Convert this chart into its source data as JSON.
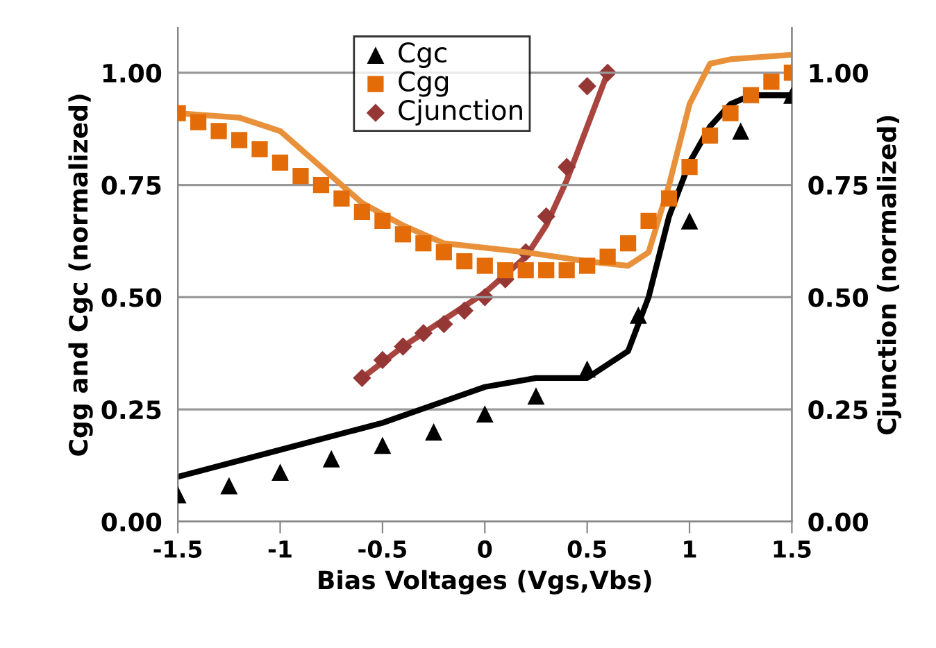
{
  "chart_data": {
    "type": "scatter",
    "xlabel": "Bias Voltages (Vgs,Vbs)",
    "ylabel": "Cgg and Cgc (normalized)",
    "y2label": "Cjunction (normalized)",
    "xlim": [
      -1.5,
      1.5
    ],
    "xticks": [
      {
        "value": -1.5,
        "label": "-1.5"
      },
      {
        "value": -1,
        "label": "-1"
      },
      {
        "value": -0.5,
        "label": "-0.5"
      },
      0,
      0.5,
      1,
      1.5
    ],
    "ylim": [
      0,
      1.1
    ],
    "yticks": [
      {
        "value": 0,
        "label": "0.00"
      },
      {
        "value": 0.25,
        "label": "0.25"
      },
      {
        "value": 0.5,
        "label": "0.50"
      },
      {
        "value": 0.75,
        "label": "0.75"
      },
      {
        "value": 1,
        "label": "1.00"
      }
    ],
    "y2lim": [
      0,
      1.1
    ],
    "y2ticks": [
      {
        "value": 0,
        "label": "0.00"
      },
      {
        "value": 0.25,
        "label": "0.25"
      },
      {
        "value": 0.5,
        "label": "0.50"
      },
      {
        "value": 0.75,
        "label": "0.75"
      },
      {
        "value": 1,
        "label": "1.00"
      }
    ],
    "grid": "y",
    "legend": "top",
    "series": [
      {
        "name": "Cgc",
        "marker": "triangle",
        "color": "#000000",
        "x": [
          -1.5,
          -1.25,
          -1,
          -0.75,
          -0.5,
          -0.25,
          0,
          0.25,
          0.5,
          0.75,
          1.0,
          1.25,
          1.5
        ],
        "values": [
          0.06,
          0.08,
          0.11,
          0.14,
          0.17,
          0.2,
          0.24,
          0.28,
          0.34,
          0.46,
          0.67,
          0.87,
          0.95
        ]
      },
      {
        "name": "Cgg",
        "marker": "square",
        "color": "#e36c09",
        "x": [
          -1.5,
          -1.4,
          -1.3,
          -1.2,
          -1.1,
          -1.0,
          -0.9,
          -0.8,
          -0.7,
          -0.6,
          -0.5,
          -0.4,
          -0.3,
          -0.2,
          -0.1,
          0,
          0.1,
          0.2,
          0.3,
          0.4,
          0.5,
          0.6,
          0.7,
          0.8,
          0.9,
          1.0,
          1.1,
          1.2,
          1.3,
          1.4,
          1.5
        ],
        "values": [
          0.91,
          0.89,
          0.87,
          0.85,
          0.83,
          0.8,
          0.77,
          0.75,
          0.72,
          0.69,
          0.67,
          0.64,
          0.62,
          0.6,
          0.58,
          0.57,
          0.56,
          0.56,
          0.56,
          0.56,
          0.57,
          0.59,
          0.62,
          0.67,
          0.72,
          0.79,
          0.86,
          0.91,
          0.95,
          0.98,
          1.0
        ]
      },
      {
        "name": "Cjunction",
        "marker": "diamond",
        "axis": "y2",
        "color": "#953735",
        "x": [
          -0.6,
          -0.5,
          -0.4,
          -0.3,
          -0.2,
          -0.1,
          0,
          0.1,
          0.2,
          0.3,
          0.4,
          0.5,
          0.6
        ],
        "values": [
          0.32,
          0.36,
          0.39,
          0.42,
          0.44,
          0.47,
          0.5,
          0.54,
          0.6,
          0.68,
          0.79,
          0.97,
          1.0
        ]
      },
      {
        "type": "line",
        "color": "#000000",
        "x": [
          -1.5,
          -1.0,
          -0.5,
          -0.25,
          0,
          0.25,
          0.5,
          0.7,
          0.8,
          0.9,
          1.0,
          1.1,
          1.2,
          1.3,
          1.5
        ],
        "values": [
          0.1,
          0.16,
          0.22,
          0.26,
          0.3,
          0.32,
          0.32,
          0.38,
          0.5,
          0.68,
          0.8,
          0.88,
          0.93,
          0.95,
          0.95
        ]
      },
      {
        "type": "line",
        "color": "#e8913a",
        "x": [
          -1.5,
          -1.2,
          -1.0,
          -0.8,
          -0.6,
          -0.4,
          -0.2,
          0,
          0.2,
          0.5,
          0.7,
          0.8,
          0.9,
          1.0,
          1.1,
          1.2,
          1.5
        ],
        "values": [
          0.91,
          0.9,
          0.87,
          0.79,
          0.71,
          0.66,
          0.62,
          0.61,
          0.6,
          0.58,
          0.57,
          0.6,
          0.75,
          0.93,
          1.02,
          1.03,
          1.04
        ]
      },
      {
        "type": "line",
        "axis": "y2",
        "color": "#a9443f",
        "x": [
          -0.6,
          -0.4,
          -0.2,
          0,
          0.2,
          0.3,
          0.4,
          0.5,
          0.6
        ],
        "values": [
          0.32,
          0.39,
          0.45,
          0.51,
          0.59,
          0.66,
          0.76,
          0.88,
          1.0
        ]
      }
    ]
  }
}
